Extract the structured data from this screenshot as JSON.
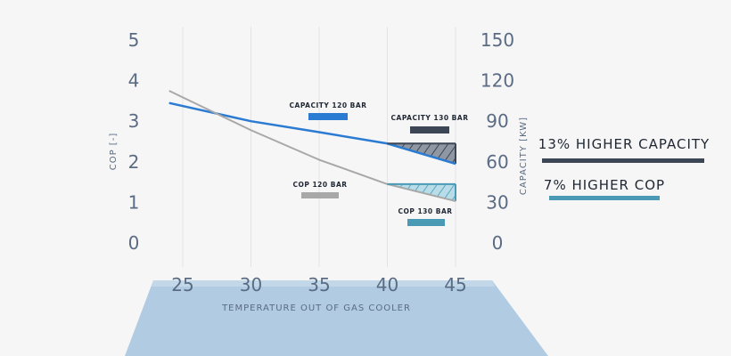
{
  "chart_data": {
    "type": "line",
    "xlabel": "TEMPERATURE OUT OF GAS COOLER",
    "ylabel_left": "COP [-]",
    "ylabel_right": "CAPACITY [KW]",
    "x_ticks": [
      "25",
      "30",
      "35",
      "40",
      "45"
    ],
    "y_left_ticks": [
      "0",
      "1",
      "2",
      "3",
      "4",
      "5"
    ],
    "y_right_ticks": [
      "0",
      "30",
      "60",
      "90",
      "120",
      "150"
    ],
    "xlim": [
      25,
      45
    ],
    "ylim_left": [
      0,
      5
    ],
    "ylim_right": [
      0,
      150
    ],
    "series": [
      {
        "name": "CAPACITY 120 BAR",
        "axis": "left",
        "color": "#2a7bd1",
        "x": [
          24,
          30,
          35,
          40,
          45
        ],
        "y": [
          3.45,
          3.0,
          2.73,
          2.45,
          1.95
        ]
      },
      {
        "name": "CAPACITY 130 BAR",
        "axis": "left",
        "color": "#3d4654",
        "x": [
          40,
          45
        ],
        "y": [
          2.45,
          2.45
        ]
      },
      {
        "name": "COP 120 BAR",
        "axis": "left",
        "color": "#a8a8a8",
        "x": [
          24,
          30,
          35,
          40,
          45
        ],
        "y": [
          3.75,
          2.78,
          2.05,
          1.45,
          1.03
        ]
      },
      {
        "name": "COP 130 BAR",
        "axis": "left",
        "color": "#4a9ab6",
        "x": [
          40,
          45
        ],
        "y": [
          1.45,
          1.45
        ]
      }
    ],
    "annotations": [
      {
        "text": "13% HIGHER CAPACITY",
        "color": "#3d4654"
      },
      {
        "text": "7% HIGHER COP",
        "color": "#4a9ab6"
      }
    ]
  }
}
